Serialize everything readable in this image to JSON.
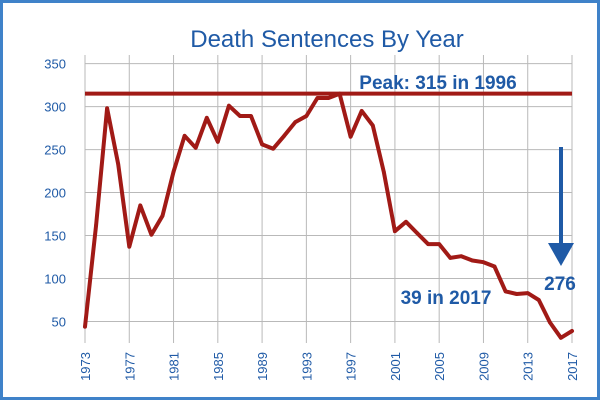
{
  "chart_data": {
    "type": "line",
    "title": "Death Sentences By Year",
    "xlabel": "",
    "ylabel": "",
    "x_ticks": [
      "1973",
      "1977",
      "1981",
      "1985",
      "1989",
      "1993",
      "1997",
      "2001",
      "2005",
      "2009",
      "2013",
      "2017"
    ],
    "y_ticks": [
      50,
      100,
      150,
      200,
      250,
      300,
      350
    ],
    "xlim": [
      1973,
      2017
    ],
    "ylim": [
      25,
      360
    ],
    "grid": true,
    "series": [
      {
        "color": "#a11a16",
        "x": [
          1973,
          1974,
          1975,
          1976,
          1977,
          1978,
          1979,
          1980,
          1981,
          1982,
          1983,
          1984,
          1985,
          1986,
          1987,
          1988,
          1989,
          1990,
          1991,
          1992,
          1993,
          1994,
          1995,
          1996,
          1997,
          1998,
          1999,
          2000,
          2001,
          2002,
          2003,
          2004,
          2005,
          2006,
          2007,
          2008,
          2009,
          2010,
          2011,
          2012,
          2013,
          2014,
          2015,
          2016,
          2017
        ],
        "y": [
          44,
          162,
          298,
          233,
          137,
          185,
          151,
          173,
          224,
          266,
          252,
          287,
          259,
          301,
          289,
          289,
          256,
          251,
          266,
          282,
          289,
          310,
          310,
          315,
          265,
          295,
          278,
          224,
          155,
          166,
          153,
          140,
          140,
          124,
          126,
          121,
          119,
          114,
          85,
          82,
          83,
          75,
          49,
          31,
          39
        ]
      }
    ],
    "peak_line": {
      "value": 315,
      "color": "#a11a16"
    },
    "annotations": {
      "peak": "Peak: 315 in 1996",
      "last": "39 in 2017",
      "drop": "276"
    },
    "arrow_color": "#1f5aa6"
  }
}
